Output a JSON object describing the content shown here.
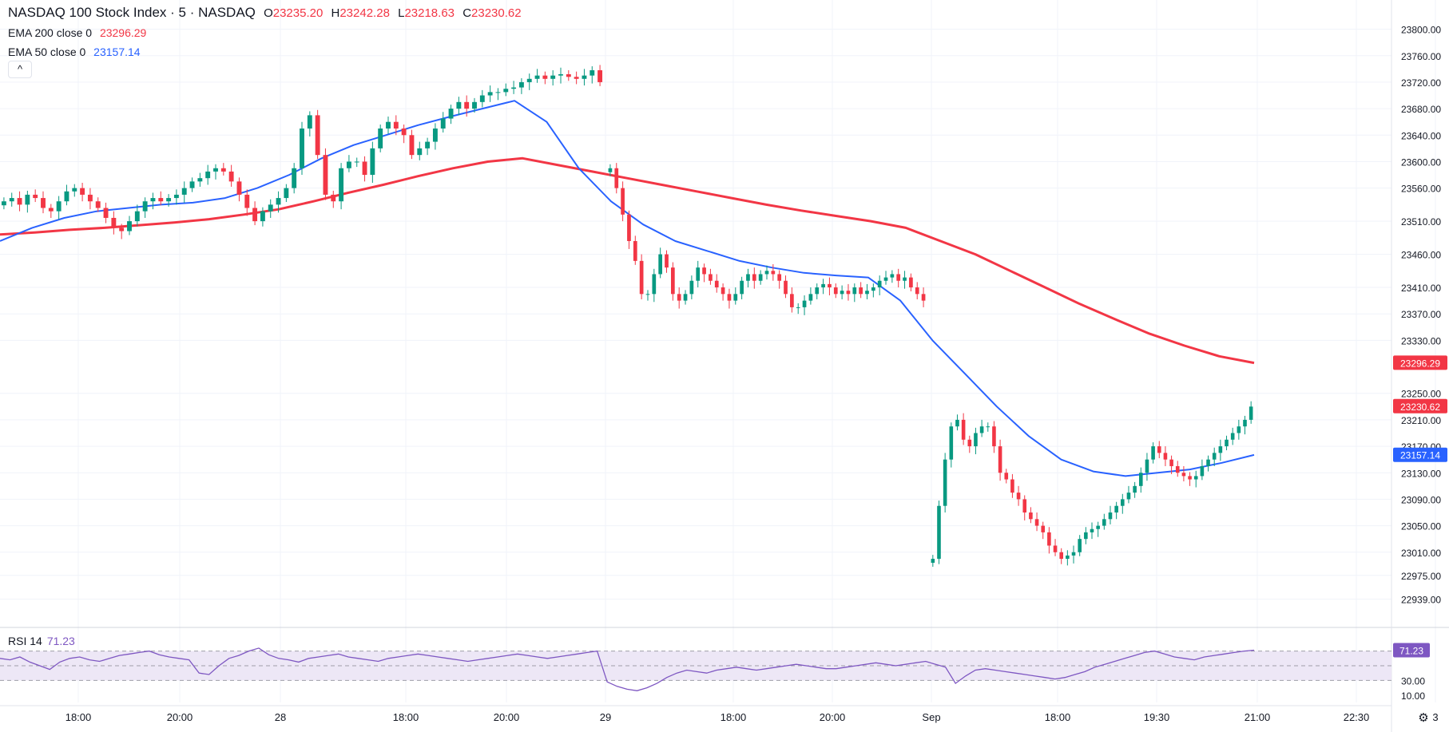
{
  "legend": {
    "title": "NASDAQ 100 Stock Index · 5 · NASDAQ",
    "open_label": "O",
    "open": "23235.20",
    "high_label": "H",
    "high": "23242.28",
    "low_label": "L",
    "low": "23218.63",
    "close_label": "C",
    "close": "23230.62",
    "ema200_label": "EMA 200 close 0",
    "ema200_value": "23296.29",
    "ema50_label": "EMA 50 close 0",
    "ema50_value": "23157.14",
    "collapse_glyph": "^"
  },
  "rsi_legend": {
    "label": "RSI 14",
    "value": "71.23"
  },
  "colors": {
    "up": "#089981",
    "down": "#f23645",
    "ema200": "#f23645",
    "ema50": "#2962ff",
    "rsi": "#7e57c2",
    "rsi_band": "#ede7f6",
    "grid": "#f0f3fa",
    "text": "#131722",
    "scale_text": "#131722"
  },
  "chart_data": [
    {
      "type": "candlestick",
      "title": "NASDAQ 100 Stock Index · 5 · NASDAQ",
      "ylim": [
        22900,
        23820
      ],
      "y_ticks": [
        23800,
        23760,
        23720,
        23680,
        23640,
        23600,
        23560,
        23510,
        23460,
        23410,
        23370,
        23330,
        23250,
        23210,
        23170,
        23130,
        23090,
        23050,
        23010,
        22975,
        22939
      ],
      "x_ticks": [
        "18:00",
        "20:00",
        "28",
        "18:00",
        "20:00",
        "29",
        "18:00",
        "20:00",
        "Sep",
        "18:00",
        "19:30",
        "21:00",
        "22:30",
        "3"
      ],
      "price_labels": [
        {
          "value": 23296.29,
          "text": "23296.29",
          "color": "#f23645"
        },
        {
          "value": 23230.62,
          "text": "23230.62",
          "color": "#f23645"
        },
        {
          "value": 23157.14,
          "text": "23157.14",
          "color": "#2962ff"
        }
      ],
      "series": [
        {
          "name": "NASDAQ 100 Stock Index",
          "segments": [
            [
              23540,
              23545,
              23535,
              23550,
              23545,
              23530,
              23525,
              23540,
              23555,
              23560,
              23550,
              23540,
              23530,
              23515,
              23500,
              23495,
              23510,
              23525,
              23540,
              23545,
              23540,
              23545,
              23550,
              23560,
              23570,
              23575,
              23585,
              23590,
              23585,
              23570,
              23550,
              23530,
              23510,
              23525,
              23535,
              23545,
              23560,
              23590,
              23650,
              23670,
              23610,
              23550,
              23540,
              23590,
              23600,
              23600,
              23580,
              23620,
              23650,
              23660,
              23650,
              23640,
              23610,
              23620,
              23630,
              23650,
              23665,
              23680,
              23690,
              23680,
              23690,
              23700,
              23705,
              23705,
              23710,
              23712,
              23720,
              23725,
              23730,
              23725,
              23730,
              23732,
              23728,
              23725,
              23730,
              23738,
              23720
            ],
            [
              23590,
              23560,
              23520,
              23480,
              23450,
              23400,
              23400,
              23430,
              23460,
              23440,
              23400,
              23390,
              23400,
              23420,
              23440,
              23430,
              23420,
              23410,
              23400,
              23390,
              23400,
              23420,
              23430,
              23420,
              23430,
              23435,
              23430,
              23420,
              23400,
              23380,
              23380,
              23390,
              23400,
              23410,
              23415,
              23410,
              23400,
              23405,
              23400,
              23410,
              23400,
              23405,
              23410,
              23420,
              23425,
              23430,
              23420,
              23425,
              23410,
              23400,
              23390
            ],
            [
              23000,
              23080,
              23150,
              23200,
              23210,
              23180,
              23170,
              23190,
              23200,
              23200,
              23170,
              23130,
              23120,
              23100,
              23090,
              23070,
              23060,
              23050,
              23040,
              23020,
              23010,
              23000,
              23005,
              23010,
              23030,
              23040,
              23045,
              23050,
              23060,
              23070,
              23080,
              23090,
              23100,
              23110,
              23130,
              23150,
              23170,
              23160,
              23150,
              23140,
              23130,
              23125,
              23120,
              23125,
              23140,
              23150,
              23160,
              23170,
              23180,
              23190,
              23200,
              23210,
              23230
            ]
          ]
        },
        {
          "name": "EMA 200 close 0",
          "values": [
            23490,
            23493,
            23497,
            23500,
            23504,
            23508,
            23513,
            23520,
            23528,
            23540,
            23553,
            23565,
            23578,
            23590,
            23600,
            23605,
            23595,
            23585,
            23575,
            23565,
            23555,
            23545,
            23535,
            23526,
            23518,
            23510,
            23500,
            23480,
            23460,
            23435,
            23410,
            23385,
            23362,
            23340,
            23322,
            23306,
            23296
          ]
        },
        {
          "name": "EMA 50 close 0",
          "values": [
            23480,
            23500,
            23515,
            23525,
            23530,
            23535,
            23538,
            23545,
            23560,
            23580,
            23605,
            23625,
            23640,
            23655,
            23668,
            23680,
            23692,
            23660,
            23590,
            23540,
            23505,
            23480,
            23465,
            23450,
            23440,
            23432,
            23428,
            23425,
            23390,
            23330,
            23280,
            23230,
            23185,
            23150,
            23132,
            23125,
            23130,
            23135,
            23145,
            23157
          ]
        }
      ]
    },
    {
      "type": "line",
      "name": "RSI 14",
      "ylim": [
        0,
        100
      ],
      "y_ticks": [
        30,
        10
      ],
      "y_tick_labels": [
        "30.00",
        "10.00"
      ],
      "bands": [
        70,
        50,
        30
      ],
      "values": [
        60,
        58,
        62,
        55,
        50,
        45,
        55,
        60,
        62,
        58,
        56,
        60,
        64,
        66,
        68,
        70,
        65,
        62,
        60,
        58,
        40,
        38,
        50,
        60,
        64,
        70,
        74,
        65,
        60,
        58,
        55,
        60,
        62,
        64,
        66,
        62,
        60,
        58,
        56,
        60,
        62,
        64,
        66,
        64,
        62,
        60,
        58,
        56,
        58,
        60,
        62,
        64,
        66,
        64,
        62,
        60,
        62,
        64,
        66,
        68,
        70,
        28,
        22,
        18,
        16,
        20,
        26,
        34,
        40,
        44,
        42,
        40,
        44,
        46,
        48,
        46,
        44,
        46,
        48,
        50,
        52,
        50,
        48,
        46,
        46,
        48,
        50,
        52,
        54,
        52,
        50,
        52,
        54,
        56,
        52,
        48,
        26,
        36,
        44,
        46,
        44,
        42,
        40,
        38,
        36,
        34,
        32,
        34,
        38,
        42,
        48,
        52,
        56,
        60,
        64,
        68,
        70,
        66,
        62,
        60,
        58,
        62,
        64,
        66,
        68,
        70,
        71.23
      ],
      "label": "RSI 14",
      "current": 71.23
    }
  ]
}
